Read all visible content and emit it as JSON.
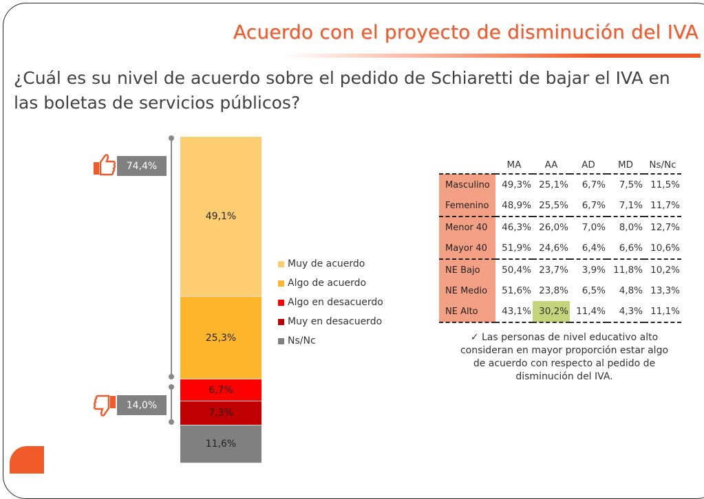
{
  "header": {
    "title": "Acuerdo con el proyecto de disminución del IVA",
    "question": "¿Cuál es su nivel de acuerdo sobre el pedido de Schiaretti de bajar el IVA en las boletas de servicios públicos?"
  },
  "colors": {
    "accent": "#f05a28",
    "muy_acuerdo": "#fdcd72",
    "algo_acuerdo": "#fdb62c",
    "algo_desacuerdo": "#ff0000",
    "muy_desacuerdo": "#c00000",
    "nsnc": "#808080",
    "highlight": "#c4d47a",
    "label_col": "#f4a085"
  },
  "chart_data": {
    "type": "bar",
    "stacked": true,
    "series": [
      {
        "name": "Muy de acuerdo",
        "value": 49.1,
        "label": "49,1%",
        "color": "#fdcd72"
      },
      {
        "name": "Algo de acuerdo",
        "value": 25.3,
        "label": "25,3%",
        "color": "#fdb62c"
      },
      {
        "name": "Algo en desacuerdo",
        "value": 6.7,
        "label": "6,7%",
        "color": "#ff0000"
      },
      {
        "name": "Muy en desacuerdo",
        "value": 7.3,
        "label": "7,3%",
        "color": "#c00000"
      },
      {
        "name": "Ns/Nc",
        "value": 11.6,
        "label": "11,6%",
        "color": "#808080"
      }
    ],
    "ylim": [
      0,
      100
    ],
    "legend": "right",
    "annotations": [
      {
        "icon": "thumbs-up-icon",
        "label": "74,4%"
      },
      {
        "icon": "thumbs-down-icon",
        "label": "14,0%"
      }
    ]
  },
  "table": {
    "columns": [
      "MA",
      "AA",
      "AD",
      "MD",
      "Ns/Nc"
    ],
    "rows": [
      {
        "label": "Masculino",
        "values": [
          "49,3%",
          "25,1%",
          "6,7%",
          "7,5%",
          "11,5%"
        ]
      },
      {
        "label": "Femenino",
        "values": [
          "48,9%",
          "25,5%",
          "6,7%",
          "7,1%",
          "11,7%"
        ]
      },
      {
        "label": "Menor 40",
        "values": [
          "46,3%",
          "26,0%",
          "7,0%",
          "8,0%",
          "12,7%"
        ]
      },
      {
        "label": "Mayor 40",
        "values": [
          "51,9%",
          "24,6%",
          "6,4%",
          "6,6%",
          "10,6%"
        ]
      },
      {
        "label": "NE Bajo",
        "values": [
          "50,4%",
          "23,7%",
          "3,9%",
          "11,8%",
          "10,2%"
        ]
      },
      {
        "label": "NE Medio",
        "values": [
          "51,6%",
          "23,8%",
          "6,5%",
          "4,8%",
          "13,3%"
        ]
      },
      {
        "label": "NE Alto",
        "values": [
          "43,1%",
          "30,2%",
          "11,4%",
          "4,3%",
          "11,1%"
        ]
      }
    ],
    "highlight": {
      "row": 6,
      "col": 1
    }
  },
  "note": {
    "check": "✓",
    "text": "Las personas de nivel educativo alto consideran en mayor proporción estar algo de acuerdo con respecto al pedido de disminución del IVA."
  }
}
